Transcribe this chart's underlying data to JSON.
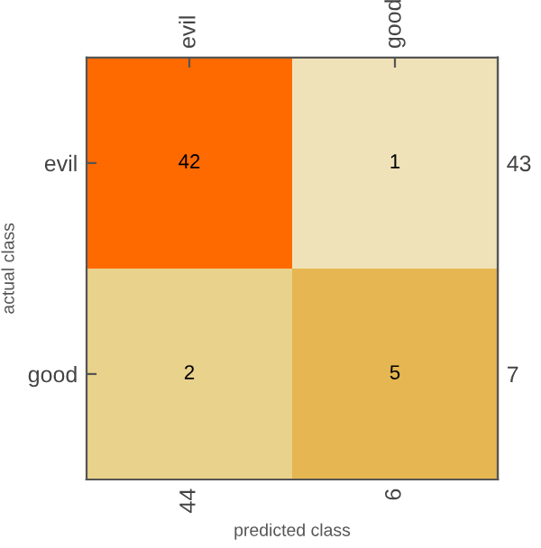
{
  "chart_data": {
    "type": "heatmap",
    "xlabel": "predicted class",
    "ylabel": "actual class",
    "categories": [
      "evil",
      "good"
    ],
    "y_categories": [
      "evil",
      "good"
    ],
    "y2_categories": [
      "43",
      "7"
    ],
    "cells": [
      [
        42,
        1
      ],
      [
        2,
        5
      ]
    ],
    "colors": [
      "#ff6a00",
      "#f0e2b8",
      "#e9d28b",
      "#e5b651"
    ],
    "annotations": [
      "44",
      "6"
    ],
    "data_labels": true,
    "grid": false,
    "legend": false
  }
}
